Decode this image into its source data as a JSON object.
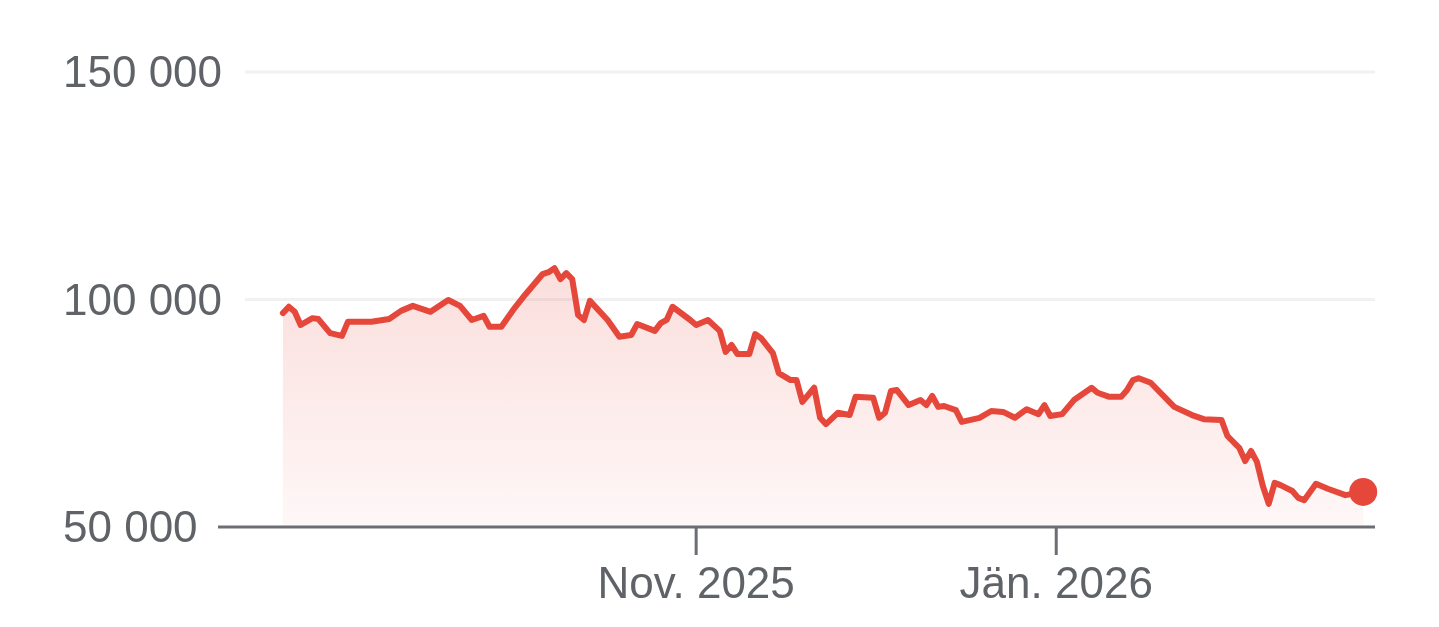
{
  "chart_data": {
    "type": "area",
    "color": "#e5483b",
    "grid": "y",
    "xlim": [
      "2025-08-12",
      "2026-02-24"
    ],
    "ylim": [
      50000,
      150000
    ],
    "yticks": [
      {
        "value": 50000,
        "label": "50 000"
      },
      {
        "value": 100000,
        "label": "100 000"
      },
      {
        "value": 150000,
        "label": "150 000"
      }
    ],
    "xticks": [
      {
        "value": "2025-11-01",
        "label": "Nov. 2025"
      },
      {
        "value": "2026-01-01",
        "label": "Jän. 2026"
      }
    ],
    "x": [
      "2025-08-23",
      "2025-08-24",
      "2025-08-25",
      "2025-08-26",
      "2025-08-28",
      "2025-08-29",
      "2025-08-31",
      "2025-09-02",
      "2025-09-03",
      "2025-09-07",
      "2025-09-10",
      "2025-09-12",
      "2025-09-14",
      "2025-09-17",
      "2025-09-20",
      "2025-09-22",
      "2025-09-24",
      "2025-09-26",
      "2025-09-27",
      "2025-09-29",
      "2025-10-01",
      "2025-10-03",
      "2025-10-06",
      "2025-10-07",
      "2025-10-08",
      "2025-10-09",
      "2025-10-10",
      "2025-10-11",
      "2025-10-12",
      "2025-10-13",
      "2025-10-14",
      "2025-10-17",
      "2025-10-19",
      "2025-10-21",
      "2025-10-22",
      "2025-10-25",
      "2025-10-26",
      "2025-10-27",
      "2025-10-28",
      "2025-10-31",
      "2025-11-01",
      "2025-11-03",
      "2025-11-05",
      "2025-11-06",
      "2025-11-07",
      "2025-11-08",
      "2025-11-10",
      "2025-11-11",
      "2025-11-12",
      "2025-11-14",
      "2025-11-15",
      "2025-11-17",
      "2025-11-18",
      "2025-11-19",
      "2025-11-21",
      "2025-11-22",
      "2025-11-23",
      "2025-11-25",
      "2025-11-27",
      "2025-11-28",
      "2025-12-01",
      "2025-12-02",
      "2025-12-03",
      "2025-12-04",
      "2025-12-05",
      "2025-12-07",
      "2025-12-09",
      "2025-12-10",
      "2025-12-11",
      "2025-12-12",
      "2025-12-13",
      "2025-12-15",
      "2025-12-16",
      "2025-12-19",
      "2025-12-21",
      "2025-12-23",
      "2025-12-25",
      "2025-12-27",
      "2025-12-29",
      "2025-12-30",
      "2025-12-31",
      "2026-01-02",
      "2026-01-04",
      "2026-01-07",
      "2026-01-08",
      "2026-01-10",
      "2026-01-12",
      "2026-01-13",
      "2026-01-14",
      "2026-01-15",
      "2026-01-17",
      "2026-01-20",
      "2026-01-21",
      "2026-01-24",
      "2026-01-26",
      "2026-01-29",
      "2026-01-30",
      "2026-02-01",
      "2026-02-02",
      "2026-02-03",
      "2026-02-04",
      "2026-02-05",
      "2026-02-06",
      "2026-02-07",
      "2026-02-08",
      "2026-02-10",
      "2026-02-11",
      "2026-02-12",
      "2026-02-14",
      "2026-02-16",
      "2026-02-19",
      "2026-02-22"
    ],
    "values": [
      97000,
      98400,
      97300,
      94400,
      95900,
      95700,
      92600,
      92000,
      95100,
      95100,
      95700,
      97500,
      98600,
      97300,
      99900,
      98600,
      95500,
      96400,
      94000,
      94000,
      97700,
      101000,
      105600,
      106000,
      106900,
      104500,
      105800,
      104500,
      96600,
      95500,
      99700,
      95500,
      91800,
      92200,
      94600,
      93100,
      94800,
      95500,
      98400,
      95500,
      94400,
      95500,
      93100,
      88500,
      90000,
      88000,
      88000,
      92400,
      91500,
      88200,
      83800,
      82300,
      82300,
      77500,
      80600,
      74000,
      72600,
      75100,
      74600,
      78600,
      78400,
      74000,
      75100,
      79900,
      80100,
      76800,
      77900,
      76800,
      78800,
      76400,
      76600,
      75700,
      73100,
      74000,
      75500,
      75300,
      74000,
      75900,
      74800,
      76800,
      74400,
      74800,
      77900,
      80600,
      79500,
      78600,
      78600,
      80100,
      82300,
      82700,
      81700,
      77700,
      76400,
      74600,
      73700,
      73500,
      70000,
      67400,
      64500,
      66700,
      64300,
      59000,
      55100,
      59700,
      59200,
      57900,
      56400,
      55900,
      59500,
      58400,
      57000,
      57700
    ]
  }
}
